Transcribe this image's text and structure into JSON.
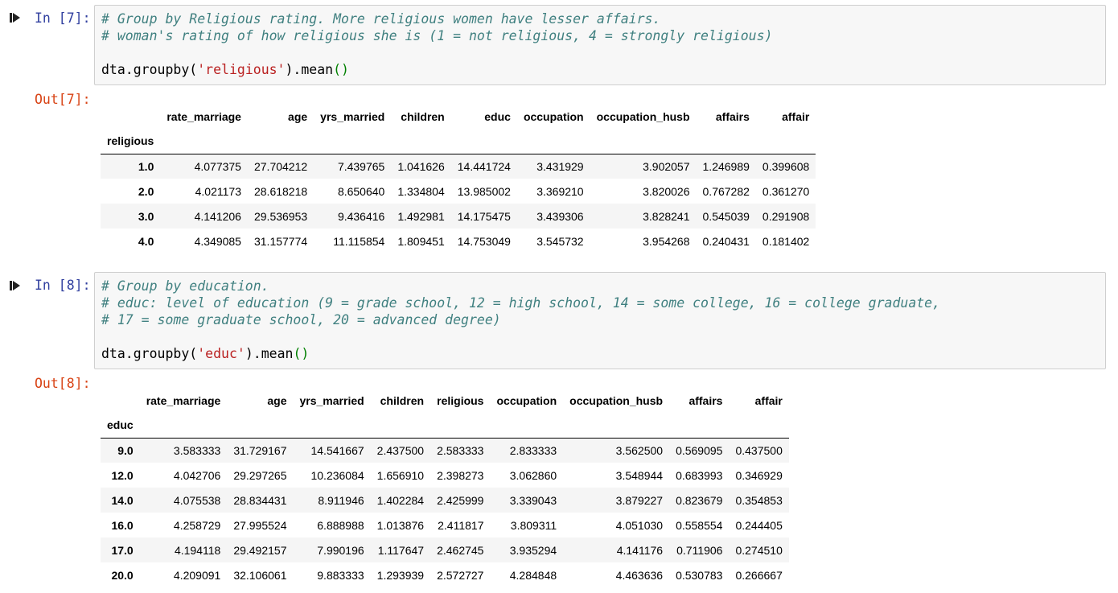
{
  "cells": [
    {
      "in_prompt": "In [7]:",
      "out_prompt": "Out[7]:",
      "code": {
        "comment1": "# Group by Religious rating. More religious women have lesser affairs.",
        "comment2": "# woman's rating of how religious she is (1 = not religious, 4 = strongly religious)",
        "call_prefix": "dta.groupby(",
        "call_arg": "'religious'",
        "call_suffix": ").mean",
        "call_parens": "()"
      },
      "table": {
        "index_name": "religious",
        "columns": [
          "rate_marriage",
          "age",
          "yrs_married",
          "children",
          "educ",
          "occupation",
          "occupation_husb",
          "affairs",
          "affair"
        ],
        "rows": [
          {
            "index": "1.0",
            "values": [
              "4.077375",
              "27.704212",
              "7.439765",
              "1.041626",
              "14.441724",
              "3.431929",
              "3.902057",
              "1.246989",
              "0.399608"
            ]
          },
          {
            "index": "2.0",
            "values": [
              "4.021173",
              "28.618218",
              "8.650640",
              "1.334804",
              "13.985002",
              "3.369210",
              "3.820026",
              "0.767282",
              "0.361270"
            ]
          },
          {
            "index": "3.0",
            "values": [
              "4.141206",
              "29.536953",
              "9.436416",
              "1.492981",
              "14.175475",
              "3.439306",
              "3.828241",
              "0.545039",
              "0.291908"
            ]
          },
          {
            "index": "4.0",
            "values": [
              "4.349085",
              "31.157774",
              "11.115854",
              "1.809451",
              "14.753049",
              "3.545732",
              "3.954268",
              "0.240431",
              "0.181402"
            ]
          }
        ]
      }
    },
    {
      "in_prompt": "In [8]:",
      "out_prompt": "Out[8]:",
      "code": {
        "comment1": "# Group by education.",
        "comment2": "# educ: level of education (9 = grade school, 12 = high school, 14 = some college, 16 = college graduate,",
        "comment3": "# 17 = some graduate school, 20 = advanced degree)",
        "call_prefix": "dta.groupby(",
        "call_arg": "'educ'",
        "call_suffix": ").mean",
        "call_parens": "()"
      },
      "table": {
        "index_name": "educ",
        "columns": [
          "rate_marriage",
          "age",
          "yrs_married",
          "children",
          "religious",
          "occupation",
          "occupation_husb",
          "affairs",
          "affair"
        ],
        "rows": [
          {
            "index": "9.0",
            "values": [
              "3.583333",
              "31.729167",
              "14.541667",
              "2.437500",
              "2.583333",
              "2.833333",
              "3.562500",
              "0.569095",
              "0.437500"
            ]
          },
          {
            "index": "12.0",
            "values": [
              "4.042706",
              "29.297265",
              "10.236084",
              "1.656910",
              "2.398273",
              "3.062860",
              "3.548944",
              "0.683993",
              "0.346929"
            ]
          },
          {
            "index": "14.0",
            "values": [
              "4.075538",
              "28.834431",
              "8.911946",
              "1.402284",
              "2.425999",
              "3.339043",
              "3.879227",
              "0.823679",
              "0.354853"
            ]
          },
          {
            "index": "16.0",
            "values": [
              "4.258729",
              "27.995524",
              "6.888988",
              "1.013876",
              "2.411817",
              "3.809311",
              "4.051030",
              "0.558554",
              "0.244405"
            ]
          },
          {
            "index": "17.0",
            "values": [
              "4.194118",
              "29.492157",
              "7.990196",
              "1.117647",
              "2.462745",
              "3.935294",
              "4.141176",
              "0.711906",
              "0.274510"
            ]
          },
          {
            "index": "20.0",
            "values": [
              "4.209091",
              "32.106061",
              "9.883333",
              "1.293939",
              "2.572727",
              "4.284848",
              "4.463636",
              "0.530783",
              "0.266667"
            ]
          }
        ]
      }
    }
  ]
}
